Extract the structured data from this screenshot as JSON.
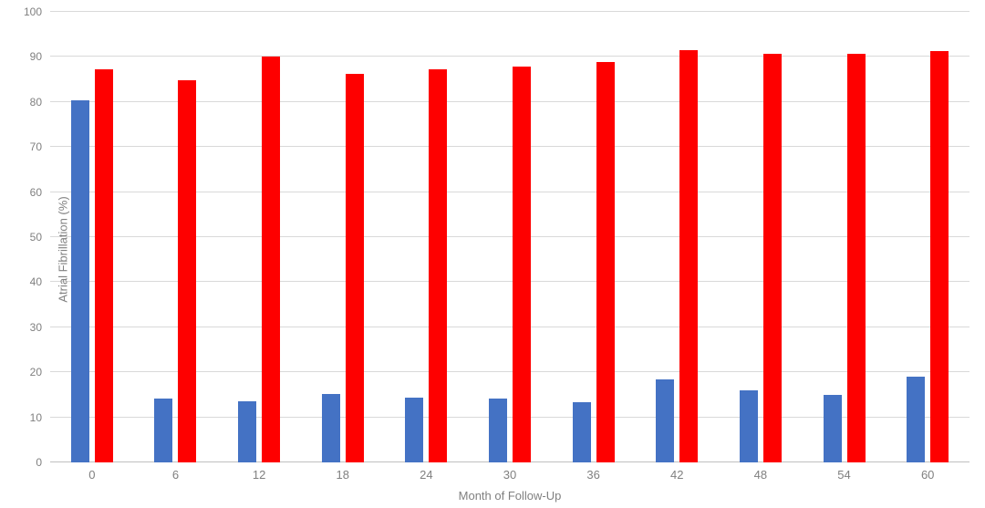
{
  "chart_data": {
    "type": "bar",
    "title": "",
    "xlabel": "Month of Follow-Up",
    "ylabel": "Atrial Fibrillation (%)",
    "categories": [
      "0",
      "6",
      "12",
      "18",
      "24",
      "30",
      "36",
      "42",
      "48",
      "54",
      "60"
    ],
    "series": [
      {
        "name": "blue-series",
        "color": "#4472c4",
        "values": [
          80.4,
          14.2,
          13.5,
          15.1,
          14.4,
          14.1,
          13.3,
          18.5,
          16.0,
          14.9,
          19.0
        ]
      },
      {
        "name": "red-series",
        "color": "#fe0000",
        "values": [
          87.2,
          84.8,
          90.0,
          86.2,
          87.2,
          87.8,
          88.9,
          91.5,
          90.7,
          90.7,
          91.2
        ]
      }
    ],
    "ylim": [
      0,
      100
    ],
    "ytick_step": 10,
    "yticks": [
      "0",
      "10",
      "20",
      "30",
      "40",
      "50",
      "60",
      "70",
      "80",
      "90",
      "100"
    ],
    "grid": "horizontal",
    "legend": "none",
    "colors": {
      "gridline": "#d9d9d9",
      "baseline": "#bfbfbf",
      "axis_text": "#808080",
      "background": "#ffffff"
    }
  }
}
